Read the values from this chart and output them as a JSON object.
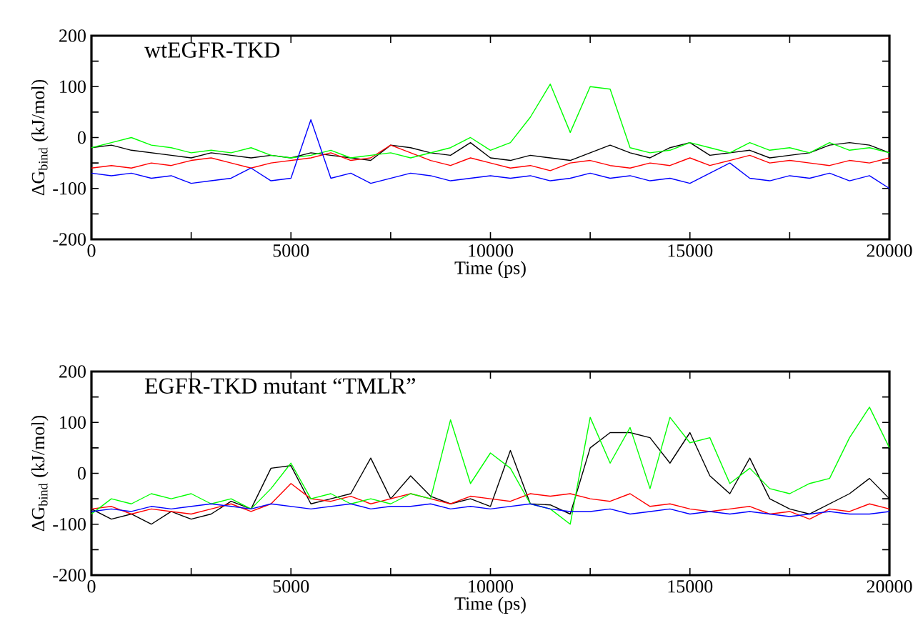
{
  "chart_data": [
    {
      "type": "line",
      "title": "wtEGFR-TKD",
      "xlabel": "Time (ps)",
      "ylabel": "ΔG$_{bind}$ (kJ/mol)",
      "x": [
        0,
        500,
        1000,
        1500,
        2000,
        2500,
        3000,
        3500,
        4000,
        4500,
        5000,
        5500,
        6000,
        6500,
        7000,
        7500,
        8000,
        8500,
        9000,
        9500,
        10000,
        10500,
        11000,
        11500,
        12000,
        12500,
        13000,
        13500,
        14000,
        14500,
        15000,
        15500,
        16000,
        16500,
        17000,
        17500,
        18000,
        18500,
        19000,
        19500,
        20000
      ],
      "xlim": [
        0,
        20000
      ],
      "ylim": [
        -200,
        200
      ],
      "xticks": [
        0,
        {
          "value": 2500,
          "label": null
        },
        5000,
        {
          "value": 7500,
          "label": null
        },
        10000,
        {
          "value": 12500,
          "label": null
        },
        15000,
        {
          "value": 17500,
          "label": null
        },
        20000
      ],
      "yticks": [
        -200,
        {
          "value": -150,
          "label": null
        },
        -100,
        {
          "value": -50,
          "label": null
        },
        0,
        {
          "value": 50,
          "label": null
        },
        100,
        {
          "value": 150,
          "label": null
        },
        200
      ],
      "series": [
        {
          "color": "#000000",
          "values": [
            -20,
            -15,
            -25,
            -30,
            -35,
            -40,
            -30,
            -35,
            -40,
            -35,
            -40,
            -30,
            -35,
            -40,
            -45,
            -15,
            -20,
            -30,
            -35,
            -10,
            -40,
            -45,
            -35,
            -40,
            -45,
            -30,
            -15,
            -30,
            -40,
            -20,
            -10,
            -35,
            -30,
            -25,
            -40,
            -35,
            -30,
            -15,
            -10,
            -15,
            -30
          ]
        },
        {
          "color": "#ff0000",
          "values": [
            -60,
            -55,
            -60,
            -50,
            -55,
            -45,
            -40,
            -50,
            -60,
            -50,
            -45,
            -40,
            -30,
            -45,
            -40,
            -15,
            -30,
            -45,
            -55,
            -40,
            -50,
            -60,
            -55,
            -65,
            -50,
            -45,
            -55,
            -60,
            -50,
            -55,
            -40,
            -55,
            -45,
            -35,
            -50,
            -45,
            -50,
            -55,
            -45,
            -50,
            -40
          ]
        },
        {
          "color": "#00ff00",
          "values": [
            -20,
            -10,
            0,
            -15,
            -20,
            -30,
            -25,
            -30,
            -20,
            -35,
            -40,
            -35,
            -25,
            -40,
            -35,
            -30,
            -40,
            -30,
            -20,
            0,
            -25,
            -10,
            40,
            105,
            10,
            100,
            95,
            -20,
            -30,
            -25,
            -10,
            -20,
            -30,
            -10,
            -25,
            -20,
            -30,
            -10,
            -25,
            -20,
            -30
          ]
        },
        {
          "color": "#0000ff",
          "values": [
            -70,
            -75,
            -70,
            -80,
            -75,
            -90,
            -85,
            -80,
            -60,
            -85,
            -80,
            35,
            -80,
            -70,
            -90,
            -80,
            -70,
            -75,
            -85,
            -80,
            -75,
            -80,
            -75,
            -85,
            -80,
            -70,
            -80,
            -75,
            -85,
            -80,
            -90,
            -70,
            -50,
            -80,
            -85,
            -75,
            -80,
            -70,
            -85,
            -75,
            -100
          ]
        }
      ]
    },
    {
      "type": "line",
      "title": "EGFR-TKD mutant “TMLR”",
      "xlabel": "Time (ps)",
      "ylabel": "ΔG$_{bind}$ (kJ/mol)",
      "x": [
        0,
        500,
        1000,
        1500,
        2000,
        2500,
        3000,
        3500,
        4000,
        4500,
        5000,
        5500,
        6000,
        6500,
        7000,
        7500,
        8000,
        8500,
        9000,
        9500,
        10000,
        10500,
        11000,
        11500,
        12000,
        12500,
        13000,
        13500,
        14000,
        14500,
        15000,
        15500,
        16000,
        16500,
        17000,
        17500,
        18000,
        18500,
        19000,
        19500,
        20000
      ],
      "xlim": [
        0,
        20000
      ],
      "ylim": [
        -200,
        200
      ],
      "xticks": [
        0,
        {
          "value": 2500,
          "label": null
        },
        5000,
        {
          "value": 7500,
          "label": null
        },
        10000,
        {
          "value": 12500,
          "label": null
        },
        15000,
        {
          "value": 17500,
          "label": null
        },
        20000
      ],
      "yticks": [
        -200,
        {
          "value": -150,
          "label": null
        },
        -100,
        {
          "value": -50,
          "label": null
        },
        0,
        {
          "value": 50,
          "label": null
        },
        100,
        {
          "value": 150,
          "label": null
        },
        200
      ],
      "series": [
        {
          "color": "#000000",
          "values": [
            -70,
            -90,
            -80,
            -100,
            -75,
            -90,
            -80,
            -55,
            -70,
            10,
            15,
            -60,
            -50,
            -40,
            30,
            -50,
            -5,
            -45,
            -60,
            -50,
            -65,
            45,
            -60,
            -62,
            -80,
            50,
            80,
            80,
            70,
            20,
            80,
            -5,
            -40,
            30,
            -50,
            -70,
            -80,
            -60,
            -40,
            -10,
            -50
          ]
        },
        {
          "color": "#ff0000",
          "values": [
            -70,
            -65,
            -80,
            -70,
            -75,
            -80,
            -70,
            -60,
            -75,
            -60,
            -20,
            -50,
            -55,
            -45,
            -60,
            -50,
            -40,
            -50,
            -60,
            -45,
            -50,
            -55,
            -40,
            -45,
            -40,
            -50,
            -55,
            -40,
            -65,
            -60,
            -70,
            -75,
            -70,
            -65,
            -80,
            -75,
            -90,
            -70,
            -75,
            -60,
            -70
          ]
        },
        {
          "color": "#00ff00",
          "values": [
            -80,
            -50,
            -60,
            -40,
            -50,
            -40,
            -60,
            -50,
            -70,
            -30,
            20,
            -50,
            -40,
            -60,
            -50,
            -60,
            -40,
            -50,
            105,
            -20,
            40,
            10,
            -60,
            -70,
            -100,
            110,
            20,
            90,
            -30,
            110,
            60,
            70,
            -20,
            10,
            -30,
            -40,
            -20,
            -10,
            70,
            130,
            50
          ]
        },
        {
          "color": "#0000ff",
          "values": [
            -75,
            -70,
            -75,
            -65,
            -70,
            -65,
            -60,
            -65,
            -70,
            -60,
            -65,
            -70,
            -65,
            -60,
            -70,
            -65,
            -65,
            -60,
            -70,
            -65,
            -70,
            -65,
            -60,
            -70,
            -75,
            -75,
            -70,
            -80,
            -75,
            -70,
            -80,
            -75,
            -80,
            -75,
            -80,
            -85,
            -80,
            -75,
            -80,
            -80,
            -75
          ]
        }
      ]
    }
  ]
}
